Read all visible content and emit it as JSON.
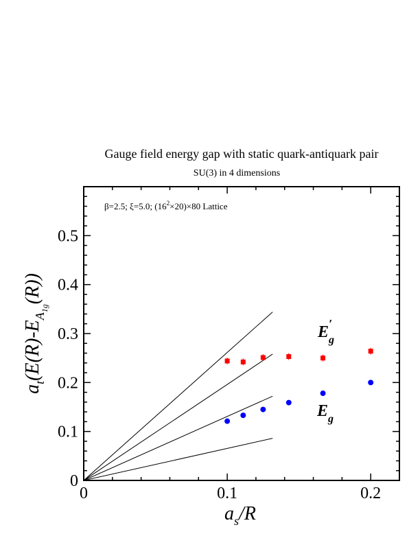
{
  "chart_data": {
    "type": "scatter",
    "title": "Gauge field energy gap with static quark-antiquark pair",
    "subtitle": "SU(3) in 4 dimensions",
    "annotation": "β=2.5; ξ=5.0; (16²×20)×80 Lattice",
    "xlabel": "a_s/R",
    "ylabel": "a_t(E(R)-E_A1g(R))",
    "xlim": [
      0,
      0.22
    ],
    "ylim": [
      0,
      0.6
    ],
    "x_ticks": [
      "0",
      "0.1",
      "0.2"
    ],
    "y_ticks": [
      "0",
      "0.1",
      "0.2",
      "0.3",
      "0.4",
      "0.5"
    ],
    "grid": false,
    "series": [
      {
        "name": "E'g",
        "marker": "square",
        "color": "#ff0000",
        "x": [
          0.1,
          0.1111,
          0.125,
          0.1429,
          0.1667,
          0.2
        ],
        "y": [
          0.244,
          0.242,
          0.251,
          0.253,
          0.25,
          0.264
        ]
      },
      {
        "name": "Eg",
        "marker": "circle",
        "color": "#0000ff",
        "x": [
          0.1,
          0.1111,
          0.125,
          0.1429,
          0.1667,
          0.2
        ],
        "y": [
          0.121,
          0.133,
          0.145,
          0.159,
          0.178,
          0.2
        ]
      }
    ],
    "reference_lines": [
      {
        "x": [
          0,
          0.1316
        ],
        "y": [
          0,
          0.344
        ]
      },
      {
        "x": [
          0,
          0.1316
        ],
        "y": [
          0,
          0.258
        ]
      },
      {
        "x": [
          0,
          0.1316
        ],
        "y": [
          0,
          0.172
        ]
      },
      {
        "x": [
          0,
          0.1316
        ],
        "y": [
          0,
          0.086
        ]
      }
    ]
  }
}
